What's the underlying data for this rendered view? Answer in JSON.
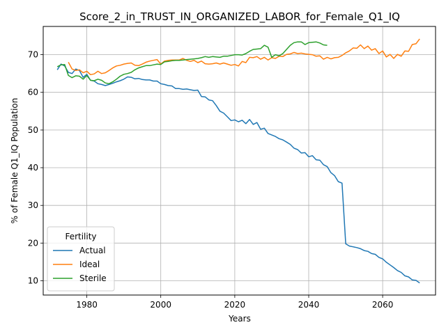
{
  "chart_data": {
    "type": "line",
    "title": "Score_2_in_TRUST_IN_ORGANIZED_LABOR_for_Female_Q1_IQ",
    "xlabel": "Years",
    "ylabel": "% of Female Q1_IQ Population",
    "xlim": [
      1968.2,
      2074.3
    ],
    "ylim": [
      6.2,
      77.5
    ],
    "xticks": [
      1980,
      2000,
      2020,
      2040,
      2060
    ],
    "yticks": [
      10,
      20,
      30,
      40,
      50,
      60,
      70
    ],
    "grid": true,
    "legend": {
      "title": "Fertility",
      "placement": "lower-left"
    },
    "series": [
      {
        "name": "Actual",
        "color": "#1f77b4",
        "points": [
          [
            1972,
            66.0
          ],
          [
            1973,
            67.5
          ],
          [
            1974,
            67.0
          ],
          [
            1975,
            65.3
          ],
          [
            1976,
            65.0
          ],
          [
            1977,
            66.2
          ],
          [
            1978,
            65.8
          ],
          [
            1979,
            64.0
          ],
          [
            1980,
            64.8
          ],
          [
            1981,
            63.2
          ],
          [
            1982,
            63.0
          ],
          [
            1983,
            62.3
          ],
          [
            1984,
            62.1
          ],
          [
            1985,
            61.8
          ],
          [
            1986,
            62.1
          ],
          [
            1987,
            62.4
          ],
          [
            1988,
            62.8
          ],
          [
            1989,
            63.1
          ],
          [
            1990,
            63.5
          ],
          [
            1991,
            64.1
          ],
          [
            1992,
            64.0
          ],
          [
            1993,
            63.6
          ],
          [
            1994,
            63.7
          ],
          [
            1995,
            63.4
          ],
          [
            1996,
            63.3
          ],
          [
            1997,
            63.3
          ],
          [
            1998,
            63.0
          ],
          [
            1999,
            63.0
          ],
          [
            2000,
            62.3
          ],
          [
            2001,
            62.1
          ],
          [
            2002,
            61.8
          ],
          [
            2003,
            61.7
          ],
          [
            2004,
            61.0
          ],
          [
            2005,
            61.0
          ],
          [
            2006,
            60.8
          ],
          [
            2007,
            60.9
          ],
          [
            2008,
            60.7
          ],
          [
            2009,
            60.5
          ],
          [
            2010,
            60.6
          ],
          [
            2011,
            58.9
          ],
          [
            2012,
            58.8
          ],
          [
            2013,
            58.0
          ],
          [
            2014,
            57.8
          ],
          [
            2015,
            56.5
          ],
          [
            2016,
            55.0
          ],
          [
            2017,
            54.5
          ],
          [
            2018,
            53.5
          ],
          [
            2019,
            52.5
          ],
          [
            2020,
            52.7
          ],
          [
            2021,
            52.2
          ],
          [
            2022,
            52.6
          ],
          [
            2023,
            51.7
          ],
          [
            2024,
            52.8
          ],
          [
            2025,
            51.5
          ],
          [
            2026,
            52.0
          ],
          [
            2027,
            50.2
          ],
          [
            2028,
            50.5
          ],
          [
            2029,
            49.1
          ],
          [
            2030,
            48.7
          ],
          [
            2031,
            48.3
          ],
          [
            2032,
            47.7
          ],
          [
            2033,
            47.4
          ],
          [
            2034,
            46.8
          ],
          [
            2035,
            46.2
          ],
          [
            2036,
            45.2
          ],
          [
            2037,
            44.8
          ],
          [
            2038,
            43.9
          ],
          [
            2039,
            44.0
          ],
          [
            2040,
            42.9
          ],
          [
            2041,
            43.2
          ],
          [
            2042,
            42.1
          ],
          [
            2043,
            42.0
          ],
          [
            2044,
            40.8
          ],
          [
            2045,
            40.3
          ],
          [
            2046,
            38.7
          ],
          [
            2047,
            37.9
          ],
          [
            2048,
            36.3
          ],
          [
            2049,
            35.9
          ],
          [
            2050,
            19.8
          ],
          [
            2051,
            19.2
          ],
          [
            2052,
            19.0
          ],
          [
            2053,
            18.8
          ],
          [
            2054,
            18.5
          ],
          [
            2055,
            18.0
          ],
          [
            2056,
            17.8
          ],
          [
            2057,
            17.2
          ],
          [
            2058,
            17.0
          ],
          [
            2059,
            16.2
          ],
          [
            2060,
            15.8
          ],
          [
            2061,
            14.9
          ],
          [
            2062,
            14.2
          ],
          [
            2063,
            13.5
          ],
          [
            2064,
            12.7
          ],
          [
            2065,
            12.2
          ],
          [
            2066,
            11.3
          ],
          [
            2067,
            11.0
          ],
          [
            2068,
            10.2
          ],
          [
            2069,
            10.1
          ],
          [
            2070,
            9.4
          ]
        ]
      },
      {
        "name": "Ideal",
        "color": "#ff7f0e",
        "points": [
          [
            1975,
            68.0
          ],
          [
            1976,
            66.2
          ],
          [
            1977,
            65.8
          ],
          [
            1978,
            66.0
          ],
          [
            1979,
            65.2
          ],
          [
            1980,
            65.6
          ],
          [
            1981,
            64.7
          ],
          [
            1982,
            64.9
          ],
          [
            1983,
            65.6
          ],
          [
            1984,
            65.0
          ],
          [
            1985,
            65.2
          ],
          [
            1986,
            65.8
          ],
          [
            1987,
            66.5
          ],
          [
            1988,
            67.0
          ],
          [
            1989,
            67.2
          ],
          [
            1990,
            67.5
          ],
          [
            1991,
            67.7
          ],
          [
            1992,
            67.8
          ],
          [
            1993,
            67.2
          ],
          [
            1994,
            67.1
          ],
          [
            1995,
            67.5
          ],
          [
            1996,
            68.0
          ],
          [
            1997,
            68.3
          ],
          [
            1998,
            68.5
          ],
          [
            1999,
            68.7
          ],
          [
            2000,
            67.5
          ],
          [
            2001,
            68.3
          ],
          [
            2002,
            68.5
          ],
          [
            2003,
            68.6
          ],
          [
            2004,
            68.6
          ],
          [
            2005,
            68.6
          ],
          [
            2006,
            69.0
          ],
          [
            2007,
            68.5
          ],
          [
            2008,
            68.2
          ],
          [
            2009,
            68.5
          ],
          [
            2010,
            67.9
          ],
          [
            2011,
            68.3
          ],
          [
            2012,
            67.6
          ],
          [
            2013,
            67.5
          ],
          [
            2014,
            67.6
          ],
          [
            2015,
            67.8
          ],
          [
            2016,
            67.5
          ],
          [
            2017,
            67.8
          ],
          [
            2018,
            67.5
          ],
          [
            2019,
            67.2
          ],
          [
            2020,
            67.4
          ],
          [
            2021,
            67.0
          ],
          [
            2022,
            68.2
          ],
          [
            2023,
            67.9
          ],
          [
            2024,
            69.3
          ],
          [
            2025,
            69.2
          ],
          [
            2026,
            69.5
          ],
          [
            2027,
            68.8
          ],
          [
            2028,
            69.3
          ],
          [
            2029,
            68.6
          ],
          [
            2030,
            69.2
          ],
          [
            2031,
            69.0
          ],
          [
            2032,
            69.6
          ],
          [
            2033,
            69.5
          ],
          [
            2034,
            70.1
          ],
          [
            2035,
            70.2
          ],
          [
            2036,
            70.6
          ],
          [
            2037,
            70.3
          ],
          [
            2038,
            70.4
          ],
          [
            2039,
            70.2
          ],
          [
            2040,
            70.1
          ],
          [
            2041,
            70.0
          ],
          [
            2042,
            69.6
          ],
          [
            2043,
            69.7
          ],
          [
            2044,
            68.8
          ],
          [
            2045,
            69.3
          ],
          [
            2046,
            68.9
          ],
          [
            2047,
            69.2
          ],
          [
            2048,
            69.3
          ],
          [
            2049,
            69.8
          ],
          [
            2050,
            70.5
          ],
          [
            2051,
            71.0
          ],
          [
            2052,
            71.8
          ],
          [
            2053,
            71.7
          ],
          [
            2054,
            72.6
          ],
          [
            2055,
            71.6
          ],
          [
            2056,
            72.3
          ],
          [
            2057,
            71.2
          ],
          [
            2058,
            71.6
          ],
          [
            2059,
            70.3
          ],
          [
            2060,
            71.0
          ],
          [
            2061,
            69.4
          ],
          [
            2062,
            70.1
          ],
          [
            2063,
            69.0
          ],
          [
            2064,
            70.1
          ],
          [
            2065,
            69.6
          ],
          [
            2066,
            71.0
          ],
          [
            2067,
            70.9
          ],
          [
            2068,
            72.7
          ],
          [
            2069,
            72.9
          ],
          [
            2070,
            74.2
          ]
        ]
      },
      {
        "name": "Sterile",
        "color": "#2ca02c",
        "points": [
          [
            1972,
            66.8
          ],
          [
            1973,
            67.3
          ],
          [
            1974,
            67.4
          ],
          [
            1975,
            64.5
          ],
          [
            1976,
            63.9
          ],
          [
            1977,
            64.4
          ],
          [
            1978,
            64.3
          ],
          [
            1979,
            63.5
          ],
          [
            1980,
            64.5
          ],
          [
            1981,
            63.2
          ],
          [
            1982,
            63.1
          ],
          [
            1983,
            63.5
          ],
          [
            1984,
            63.2
          ],
          [
            1985,
            62.5
          ],
          [
            1986,
            62.3
          ],
          [
            1987,
            62.8
          ],
          [
            1988,
            63.5
          ],
          [
            1989,
            64.3
          ],
          [
            1990,
            64.8
          ],
          [
            1991,
            65.0
          ],
          [
            1992,
            65.3
          ],
          [
            1993,
            66.0
          ],
          [
            1994,
            66.5
          ],
          [
            1995,
            66.8
          ],
          [
            1996,
            67.1
          ],
          [
            1997,
            67.1
          ],
          [
            1998,
            67.3
          ],
          [
            1999,
            67.5
          ],
          [
            2000,
            67.4
          ],
          [
            2001,
            68.1
          ],
          [
            2002,
            68.2
          ],
          [
            2003,
            68.4
          ],
          [
            2004,
            68.5
          ],
          [
            2005,
            68.5
          ],
          [
            2006,
            68.6
          ],
          [
            2007,
            68.7
          ],
          [
            2008,
            68.8
          ],
          [
            2009,
            68.9
          ],
          [
            2010,
            69.0
          ],
          [
            2011,
            69.2
          ],
          [
            2012,
            69.5
          ],
          [
            2013,
            69.3
          ],
          [
            2014,
            69.5
          ],
          [
            2015,
            69.4
          ],
          [
            2016,
            69.3
          ],
          [
            2017,
            69.6
          ],
          [
            2018,
            69.6
          ],
          [
            2019,
            69.8
          ],
          [
            2020,
            70.0
          ],
          [
            2021,
            70.0
          ],
          [
            2022,
            69.9
          ],
          [
            2023,
            70.3
          ],
          [
            2024,
            70.9
          ],
          [
            2025,
            71.4
          ],
          [
            2026,
            71.5
          ],
          [
            2027,
            71.6
          ],
          [
            2028,
            72.5
          ],
          [
            2029,
            72.0
          ],
          [
            2030,
            69.3
          ],
          [
            2031,
            70.0
          ],
          [
            2032,
            69.7
          ],
          [
            2033,
            70.3
          ],
          [
            2034,
            71.4
          ],
          [
            2035,
            72.5
          ],
          [
            2036,
            73.2
          ],
          [
            2037,
            73.4
          ],
          [
            2038,
            73.4
          ],
          [
            2039,
            72.7
          ],
          [
            2040,
            73.2
          ],
          [
            2041,
            73.3
          ],
          [
            2042,
            73.4
          ],
          [
            2043,
            73.1
          ],
          [
            2044,
            72.6
          ],
          [
            2045,
            72.5
          ]
        ]
      }
    ]
  }
}
